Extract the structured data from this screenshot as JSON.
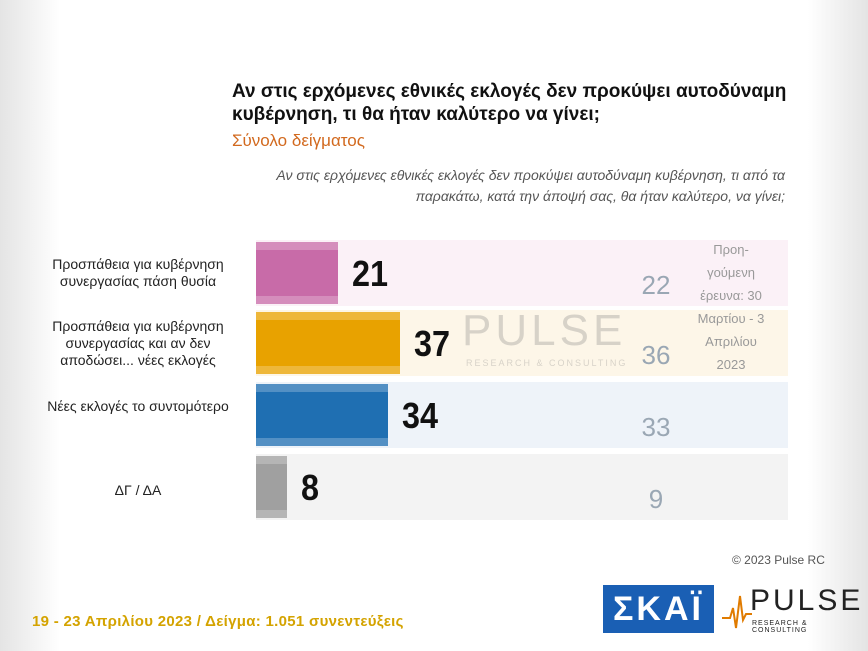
{
  "header": {
    "title": "Αν στις ερχόμενες εθνικές εκλογές δεν προκύψει αυτοδύναμη κυβέρνηση, τι θα ήταν καλύτερο να γίνει;",
    "subtitle": "Σύνολο δείγματος",
    "question": "Αν στις ερχόμενες εθνικές εκλογές δεν προκύψει αυτοδύναμη κυβέρνηση, τι από τα παρακάτω, κατά την άποψή σας, θα ήταν καλύτερο, να γίνει;"
  },
  "chart_data": {
    "type": "bar",
    "orientation": "horizontal",
    "categories": [
      "Προσπάθεια για κυβέρνηση συνεργασίας πάση θυσία",
      "Προσπάθεια για κυβέρνηση συνεργασίας και αν δεν αποδώσει... νέες εκλογές",
      "Νέες εκλογές το συντομότερο",
      "ΔΓ / ΔΑ"
    ],
    "values": [
      21,
      37,
      34,
      8
    ],
    "previous_values": [
      22,
      36,
      33,
      9
    ],
    "previous_label": "Προη-γούμενη έρευνα: 30 Μαρτίου - 3 Απριλίου 2023",
    "colors": [
      "#c86ba8",
      "#e8a200",
      "#1f6fb2",
      "#a0a0a0"
    ],
    "row_bg_colors": [
      "#fbf1f7",
      "#fdf6e8",
      "#eef3f9",
      "#f3f3f3"
    ],
    "xlim": [
      0,
      100
    ]
  },
  "branding": {
    "watermark": "PULSE",
    "watermark_sub": "RESEARCH & CONSULTING",
    "copyright": "© 2023 Pulse RC",
    "skai_logo": "ΣΚΑΪ",
    "pulse_logo": "PULSE",
    "pulse_logo_sub": "RESEARCH & CONSULTING"
  },
  "footer": {
    "text": "19 - 23  Απριλίου  2023  /  Δείγμα:  1.051 συνεντεύξεις"
  }
}
